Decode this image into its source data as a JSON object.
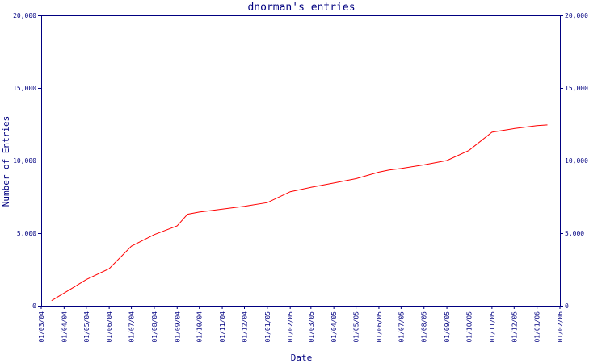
{
  "chart_data": {
    "type": "line",
    "title": "dnorman's entries",
    "xlabel": "Date",
    "ylabel": "Number of Entries",
    "ylim": [
      0,
      20000
    ],
    "y_ticks": [
      0,
      5000,
      10000,
      15000,
      20000
    ],
    "y_tick_labels": [
      "0",
      "5,000",
      "10,000",
      "15,000",
      "20,000"
    ],
    "x_tick_labels": [
      "01/03/04",
      "01/04/04",
      "01/05/04",
      "01/06/04",
      "01/07/04",
      "01/08/04",
      "01/09/04",
      "01/10/04",
      "01/11/04",
      "01/12/04",
      "01/01/05",
      "01/02/05",
      "01/03/05",
      "01/04/05",
      "01/05/05",
      "01/06/05",
      "01/07/05",
      "01/08/05",
      "01/09/05",
      "01/10/05",
      "01/11/05",
      "01/12/05",
      "01/01/06",
      "01/02/06"
    ],
    "grid": false,
    "colors": {
      "series": "#ff0000",
      "axes": "#000080",
      "background": "#ffffff"
    },
    "series": [
      {
        "x": [
          "2004-03-15",
          "2004-04-15",
          "2004-05-01",
          "2004-06-01",
          "2004-07-01",
          "2004-08-01",
          "2004-09-01",
          "2004-09-15",
          "2004-10-01",
          "2004-11-01",
          "2004-12-01",
          "2005-01-01",
          "2005-02-01",
          "2005-03-01",
          "2005-04-01",
          "2005-05-01",
          "2005-06-01",
          "2005-06-15",
          "2005-07-01",
          "2005-08-01",
          "2005-09-01",
          "2005-10-01",
          "2005-11-01",
          "2005-12-01",
          "2006-01-01",
          "2006-01-15"
        ],
        "y": [
          350,
          1300,
          1800,
          2550,
          4100,
          4900,
          5500,
          6300,
          6450,
          6650,
          6850,
          7100,
          7850,
          8150,
          8450,
          8750,
          9200,
          9350,
          9450,
          9700,
          10000,
          10700,
          11950,
          12200,
          12400,
          12450
        ]
      }
    ]
  }
}
